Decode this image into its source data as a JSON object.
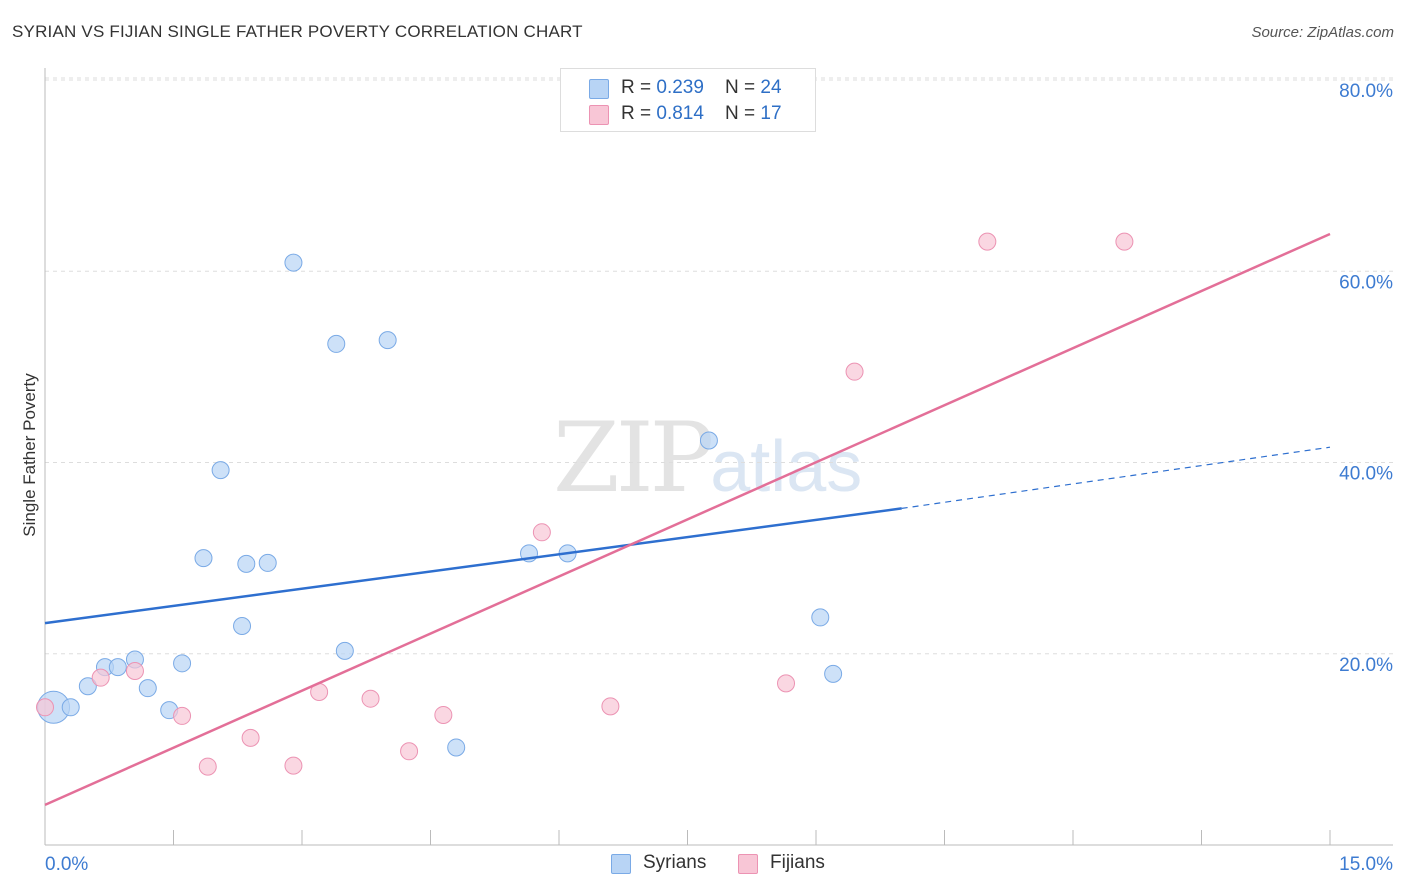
{
  "title": "SYRIAN VS FIJIAN SINGLE FATHER POVERTY CORRELATION CHART",
  "source": "Source: ZipAtlas.com",
  "legend": {
    "syrians": {
      "r_label": "R = ",
      "r_value": "0.239",
      "n_label": "N = ",
      "n_value": "24"
    },
    "fijians": {
      "r_label": "R = ",
      "r_value": "0.814",
      "n_label": "N = ",
      "n_value": "17"
    }
  },
  "bottom_legend": {
    "syrians": "Syrians",
    "fijians": "Fijians"
  },
  "watermark": {
    "zip": "ZIP",
    "atlas": "atlas"
  },
  "colors": {
    "syrians_fill": "#b8d4f5",
    "syrians_stroke": "#7aaae6",
    "syrians_line": "#2e6fcf",
    "fijians_fill": "#f8c6d6",
    "fijians_stroke": "#ec93b3",
    "fijians_line": "#e36f98",
    "tick_text": "#3d7bd1",
    "grid": "#dddddd"
  },
  "chart_data": {
    "type": "scatter",
    "title": "SYRIAN VS FIJIAN SINGLE FATHER POVERTY CORRELATION CHART",
    "xlabel": "",
    "ylabel": "Single Father Poverty",
    "xlim": [
      0,
      15
    ],
    "ylim": [
      0,
      80
    ],
    "x_tick_labels": [
      "0.0%",
      "15.0%"
    ],
    "y_ticks": [
      20,
      40,
      60,
      80
    ],
    "y_tick_labels": [
      "20.0%",
      "40.0%",
      "60.0%",
      "80.0%"
    ],
    "series": [
      {
        "name": "Syrians",
        "r": 0.239,
        "n": 24,
        "points": [
          [
            0.1,
            14.4,
            "large"
          ],
          [
            0.3,
            14.4
          ],
          [
            0.5,
            16.6
          ],
          [
            0.7,
            18.6
          ],
          [
            0.85,
            18.6
          ],
          [
            1.05,
            19.4
          ],
          [
            1.2,
            16.4
          ],
          [
            1.45,
            14.1
          ],
          [
            1.6,
            19.0
          ],
          [
            1.85,
            30.0
          ],
          [
            2.05,
            39.2
          ],
          [
            2.3,
            22.9
          ],
          [
            2.35,
            29.4
          ],
          [
            2.6,
            29.5
          ],
          [
            2.9,
            60.9
          ],
          [
            3.4,
            52.4
          ],
          [
            3.5,
            20.3
          ],
          [
            4.0,
            52.8
          ],
          [
            4.8,
            10.2
          ],
          [
            5.65,
            30.5
          ],
          [
            6.1,
            30.5
          ],
          [
            7.75,
            42.3
          ],
          [
            9.05,
            23.8
          ],
          [
            9.2,
            17.9
          ]
        ],
        "trend": {
          "x0": 0,
          "y0": 23.2,
          "x1": 10.0,
          "y1": 35.2,
          "dash_to_x": 15.0,
          "dash_to_y": 41.6
        }
      },
      {
        "name": "Fijians",
        "r": 0.814,
        "n": 17,
        "points": [
          [
            0.0,
            14.4
          ],
          [
            0.65,
            17.5
          ],
          [
            1.05,
            18.2
          ],
          [
            1.6,
            13.5
          ],
          [
            1.9,
            8.2
          ],
          [
            2.4,
            11.2
          ],
          [
            2.9,
            8.3
          ],
          [
            3.2,
            16.0
          ],
          [
            3.8,
            15.3
          ],
          [
            4.25,
            9.8
          ],
          [
            4.65,
            13.6
          ],
          [
            5.8,
            32.7
          ],
          [
            6.6,
            14.5
          ],
          [
            8.65,
            16.9
          ],
          [
            9.45,
            49.5
          ],
          [
            11.0,
            63.1
          ],
          [
            12.6,
            63.1
          ]
        ],
        "trend": {
          "x0": 0,
          "y0": 4.2,
          "x1": 15.0,
          "y1": 63.9
        }
      }
    ]
  }
}
